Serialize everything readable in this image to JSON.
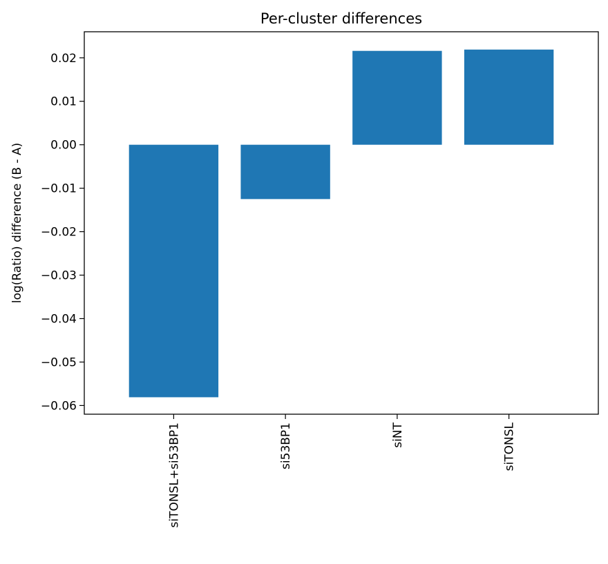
{
  "chart_data": {
    "type": "bar",
    "title": "Per-cluster differences",
    "xlabel": "",
    "ylabel": "log(Ratio) difference (B - A)",
    "categories": [
      "siTONSL+si53BP1",
      "si53BP1",
      "siNT",
      "siTONSL"
    ],
    "values": [
      -0.0581,
      -0.0125,
      0.0216,
      0.0219
    ],
    "ylim": [
      -0.062,
      0.026
    ],
    "yticks": [
      0.02,
      0.01,
      0.0,
      -0.01,
      -0.02,
      -0.03,
      -0.04,
      -0.05,
      -0.06
    ],
    "ytick_labels": [
      "0.02",
      "0.01",
      "0.00",
      "−0.01",
      "−0.02",
      "−0.03",
      "−0.04",
      "−0.05",
      "−0.06"
    ],
    "grid": false,
    "bar_color": "#1f77b4"
  }
}
